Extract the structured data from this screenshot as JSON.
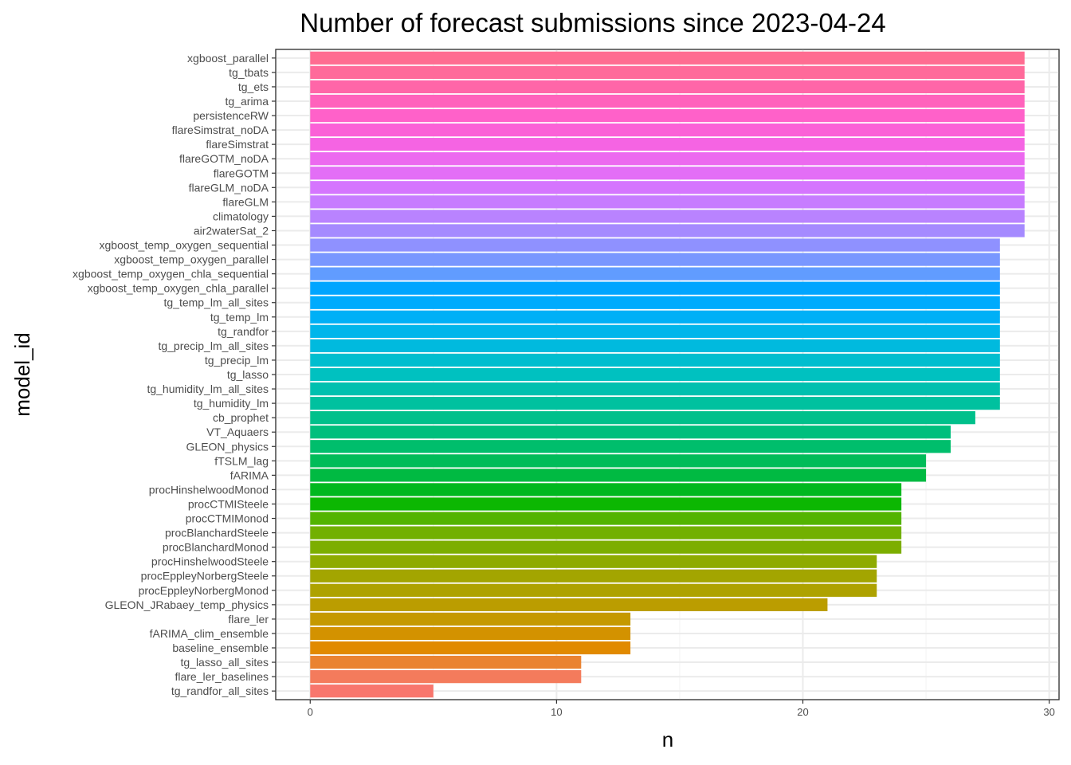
{
  "chart_data": {
    "type": "bar",
    "orientation": "horizontal",
    "title": "Number of forecast submissions since 2023-04-24",
    "xlabel": "n",
    "ylabel": "model_id",
    "xlim": [
      -1.4,
      30.4
    ],
    "xticks": [
      0,
      10,
      20,
      30
    ],
    "grid": true,
    "legend": "none",
    "categories": [
      "xgboost_parallel",
      "tg_tbats",
      "tg_ets",
      "tg_arima",
      "persistenceRW",
      "flareSimstrat_noDA",
      "flareSimstrat",
      "flareGOTM_noDA",
      "flareGOTM",
      "flareGLM_noDA",
      "flareGLM",
      "climatology",
      "air2waterSat_2",
      "xgboost_temp_oxygen_sequential",
      "xgboost_temp_oxygen_parallel",
      "xgboost_temp_oxygen_chla_sequential",
      "xgboost_temp_oxygen_chla_parallel",
      "tg_temp_lm_all_sites",
      "tg_temp_lm",
      "tg_randfor",
      "tg_precip_lm_all_sites",
      "tg_precip_lm",
      "tg_lasso",
      "tg_humidity_lm_all_sites",
      "tg_humidity_lm",
      "cb_prophet",
      "VT_Aquaers",
      "GLEON_physics",
      "fTSLM_lag",
      "fARIMA",
      "procHinshelwoodMonod",
      "procCTMISteele",
      "procCTMIMonod",
      "procBlanchardSteele",
      "procBlanchardMonod",
      "procHinshelwoodSteele",
      "procEppleyNorbergSteele",
      "procEppleyNorbergMonod",
      "GLEON_JRabaey_temp_physics",
      "flare_ler",
      "fARIMA_clim_ensemble",
      "baseline_ensemble",
      "tg_lasso_all_sites",
      "flare_ler_baselines",
      "tg_randfor_all_sites"
    ],
    "values": [
      29,
      29,
      29,
      29,
      29,
      29,
      29,
      29,
      29,
      29,
      29,
      29,
      29,
      28,
      28,
      28,
      28,
      28,
      28,
      28,
      28,
      28,
      28,
      28,
      28,
      27,
      26,
      26,
      25,
      25,
      24,
      24,
      24,
      24,
      24,
      23,
      23,
      23,
      21,
      13,
      13,
      13,
      11,
      11,
      5
    ],
    "colors": [
      "#FF6C91",
      "#FF6A9A",
      "#FF66A8",
      "#FF62BC",
      "#FF61C9",
      "#FB61D7",
      "#F564E3",
      "#EC69EF",
      "#E36EF6",
      "#D575FE",
      "#C77CFF",
      "#B983FF",
      "#A58AFF",
      "#8F91FF",
      "#7997FF",
      "#619CFF",
      "#00A5FF",
      "#00ABFD",
      "#00B0F6",
      "#00B6EB",
      "#00BADE",
      "#00BECF",
      "#00C1C0",
      "#00C0AF",
      "#00C19F",
      "#00C08B",
      "#00BF7D",
      "#00BE6C",
      "#00BC59",
      "#00BA42",
      "#00B81F",
      "#0CB702",
      "#53B400",
      "#72B000",
      "#7CAE00",
      "#8EAB00",
      "#A3A500",
      "#AEA200",
      "#BB9D00",
      "#C59900",
      "#D39200",
      "#E18A00",
      "#EA8331",
      "#F47B5C",
      "#F8766D"
    ]
  }
}
